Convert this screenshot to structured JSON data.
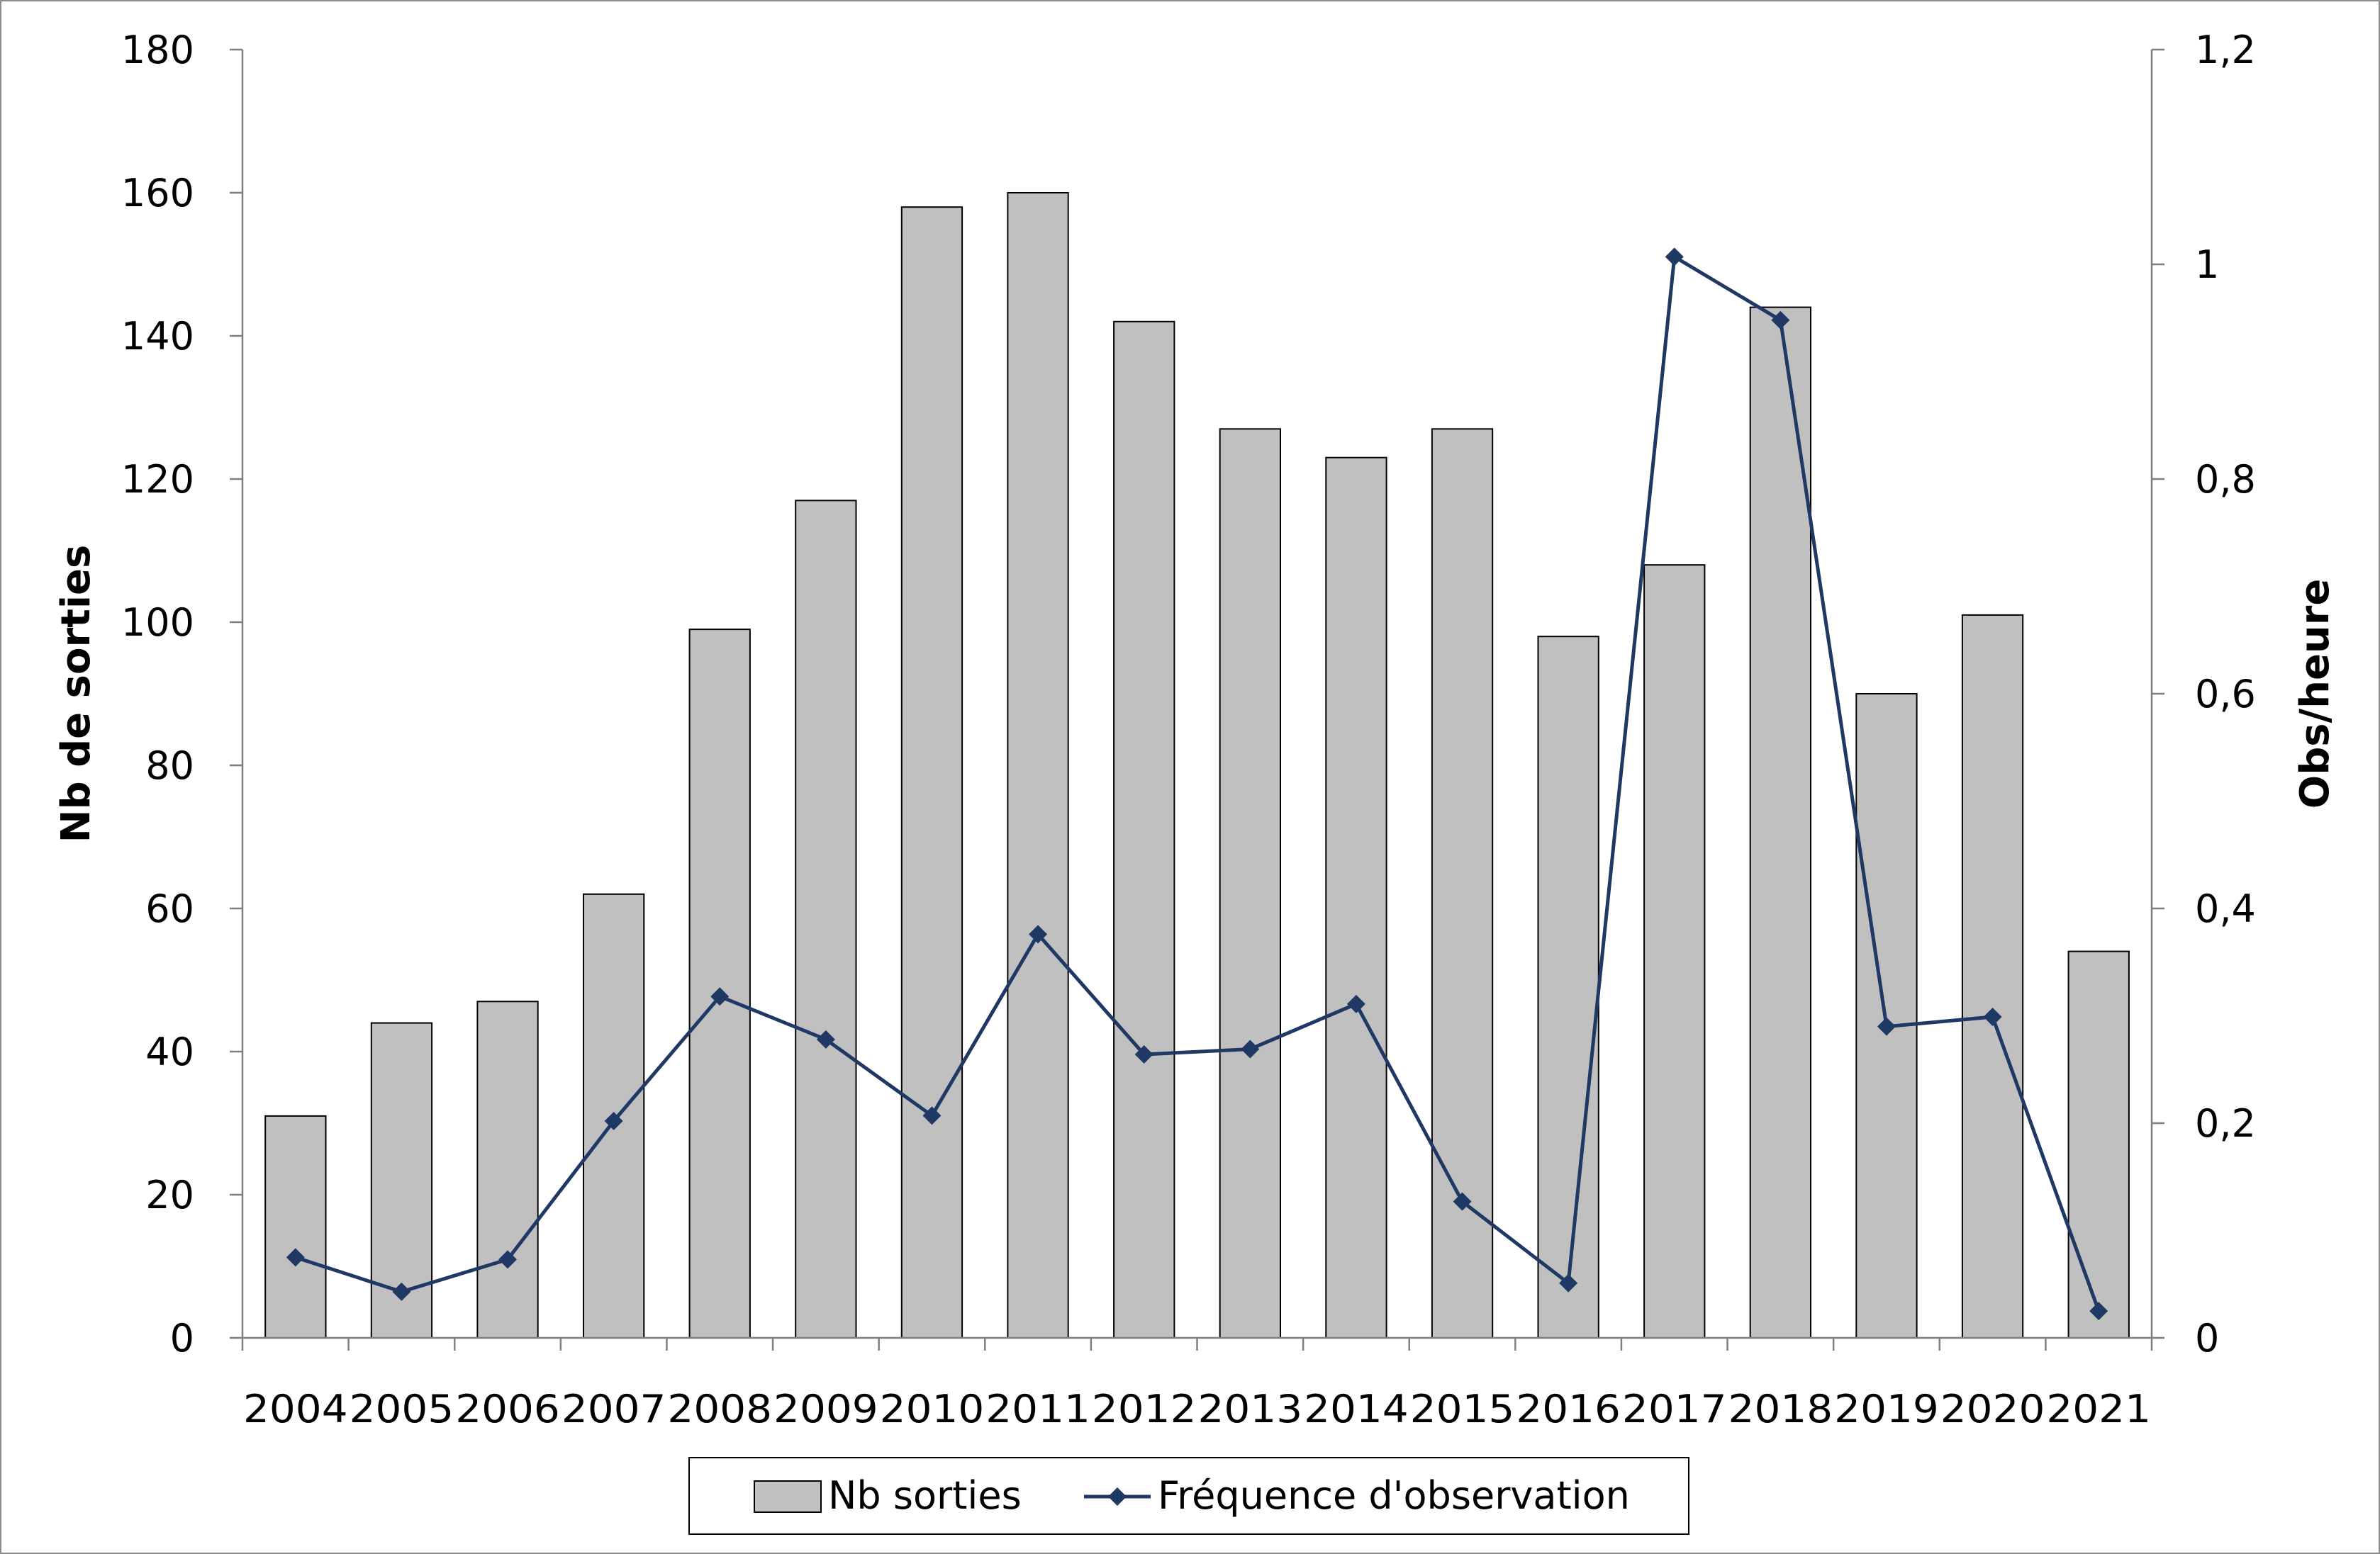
{
  "chart_data": {
    "type": "bar",
    "title": "",
    "categories": [
      "2004",
      "2005",
      "2006",
      "2007",
      "2008",
      "2009",
      "2010",
      "2011",
      "2012",
      "2013",
      "2014",
      "2015",
      "2016",
      "2017",
      "2018",
      "2019",
      "2020",
      "2021"
    ],
    "series": [
      {
        "name": "Nb sorties",
        "type": "bar",
        "axis": "left",
        "color": "#c0c0c0",
        "values": [
          31,
          44,
          47,
          62,
          99,
          117,
          158,
          160,
          142,
          127,
          123,
          127,
          98,
          108,
          144,
          90,
          101,
          54
        ]
      },
      {
        "name": "Fréquence d'observation",
        "type": "line",
        "axis": "right",
        "color": "#1f3864",
        "values": [
          0.075,
          0.043,
          0.073,
          0.202,
          0.318,
          0.278,
          0.207,
          0.376,
          0.264,
          0.269,
          0.311,
          0.127,
          0.051,
          1.007,
          0.948,
          0.29,
          0.299,
          0.025
        ]
      }
    ],
    "y_left": {
      "label": "Nb de sorties",
      "range": [
        0,
        180
      ],
      "ticks": [
        0,
        20,
        40,
        60,
        80,
        100,
        120,
        140,
        160,
        180
      ],
      "tick_labels": [
        "0",
        "20",
        "40",
        "60",
        "80",
        "100",
        "120",
        "140",
        "160",
        "180"
      ]
    },
    "y_right": {
      "label": "Obs/heure",
      "range": [
        0,
        1.2
      ],
      "ticks": [
        0,
        0.2,
        0.4,
        0.6,
        0.8,
        1,
        1.2
      ],
      "tick_labels": [
        "0",
        "0,2",
        "0,4",
        "0,6",
        "0,8",
        "1",
        "1,2"
      ]
    },
    "grid": false,
    "legend": "bottom",
    "bar_edge_color": "#000000"
  }
}
